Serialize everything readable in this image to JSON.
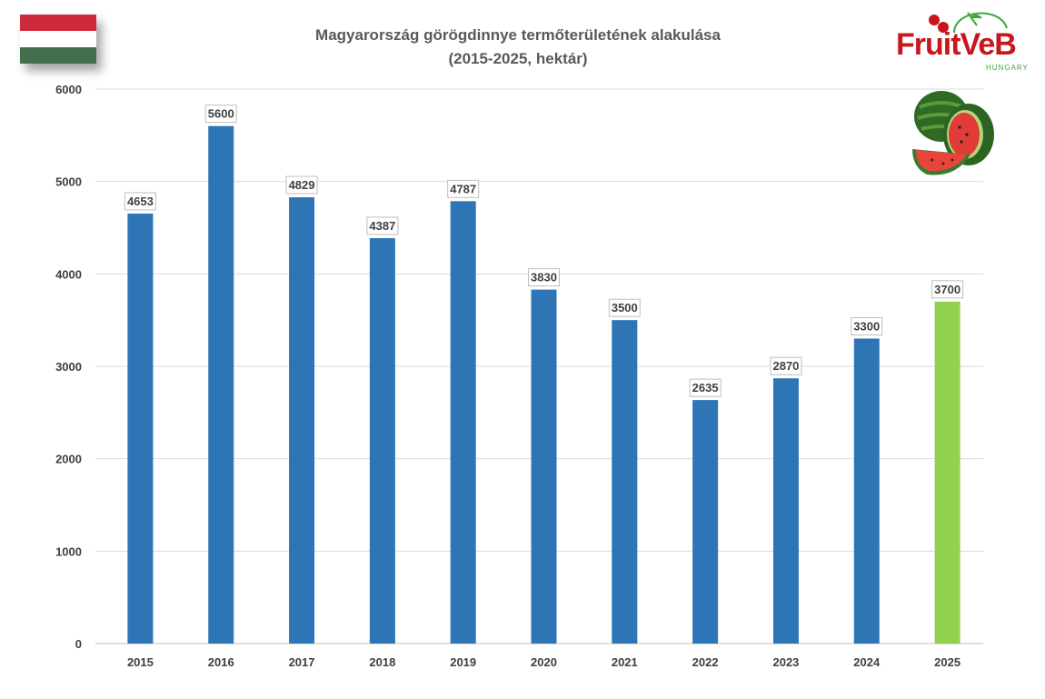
{
  "header": {
    "title_line1": "Magyarország görögdinnye termőterületének alakulása",
    "title_line2": "(2015-2025, hektár)"
  },
  "logo": {
    "text": "FruitVeB",
    "subtext": "HUNGARY",
    "brand_color": "#c8161d",
    "accent_color": "#3aaa35"
  },
  "flag": {
    "colors": [
      "#cd2a3e",
      "#ffffff",
      "#436f4d"
    ]
  },
  "chart_data": {
    "type": "bar",
    "title": "Magyarország görögdinnye termőterületének alakulása (2015-2025, hektár)",
    "categories": [
      "2015",
      "2016",
      "2017",
      "2018",
      "2019",
      "2020",
      "2021",
      "2022",
      "2023",
      "2024",
      "2025"
    ],
    "values": [
      4653,
      5600,
      4829,
      4387,
      4787,
      3830,
      3500,
      2635,
      2870,
      3300,
      3700
    ],
    "bar_colors": [
      "#2e75b6",
      "#2e75b6",
      "#2e75b6",
      "#2e75b6",
      "#2e75b6",
      "#2e75b6",
      "#2e75b6",
      "#2e75b6",
      "#2e75b6",
      "#2e75b6",
      "#92d050"
    ],
    "ylim": [
      0,
      6000
    ],
    "yticks": [
      0,
      1000,
      2000,
      3000,
      4000,
      5000,
      6000
    ],
    "grid": true,
    "xlabel": "",
    "ylabel": ""
  }
}
